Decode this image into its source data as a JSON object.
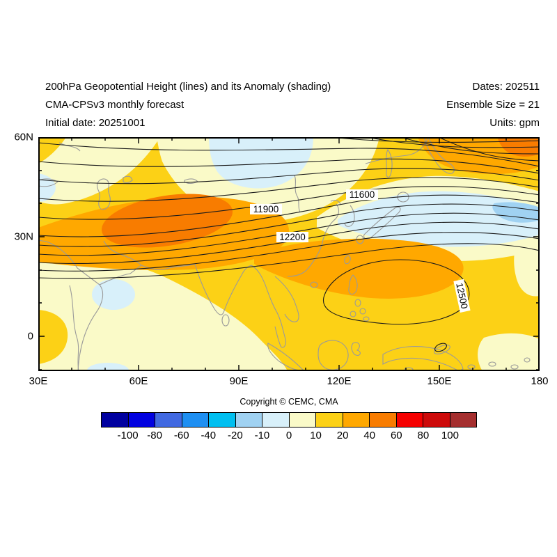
{
  "header": {
    "title": "200hPa Geopotential Height (lines) and its Anomaly (shading)",
    "model": "CMA-CPSv3 monthly forecast",
    "initial_date": "Initial date: 20251001",
    "dates": "Dates: 202511",
    "ensemble": "Ensemble Size = 21",
    "units": "Units: gpm"
  },
  "map": {
    "y_tick_labels": [
      "60N",
      "30N",
      "0"
    ],
    "x_tick_labels": [
      "30E",
      "60E",
      "90E",
      "120E",
      "150E",
      "180"
    ],
    "contour_labels": [
      "11600",
      "11900",
      "12200",
      "12500"
    ]
  },
  "footer": {
    "copyright": "Copyright © CEMC, CMA"
  },
  "colorbar": {
    "tick_labels": [
      "-100",
      "-80",
      "-60",
      "-40",
      "-20",
      "-10",
      "0",
      "10",
      "20",
      "40",
      "60",
      "80",
      "100"
    ],
    "colors": [
      "#0000A0",
      "#0202E0",
      "#4169E1",
      "#1E8FF2",
      "#00BFF0",
      "#A0D2F2",
      "#D8F0FA",
      "#FAFAC8",
      "#FCD116",
      "#FFA800",
      "#F87C00",
      "#F50000",
      "#CD0A0A",
      "#A52F2F"
    ]
  },
  "chart_data": {
    "type": "heatmap",
    "title": "200hPa Geopotential Height (lines) and its Anomaly (shading)",
    "subtitle": "CMA-CPSv3 monthly forecast, Initial date: 20251001, Dates: 202511, Ensemble Size = 21",
    "units": "gpm",
    "x_axis": {
      "ticks": [
        "30E",
        "60E",
        "90E",
        "120E",
        "150E",
        "180"
      ],
      "range_deg_east": [
        30,
        180
      ],
      "minor_tick_step_deg": 10
    },
    "y_axis": {
      "ticks": [
        "60N",
        "30N",
        "0"
      ],
      "range_deg_north": [
        -10.5,
        60
      ],
      "minor_tick_step_deg": 10
    },
    "contours": {
      "variable": "geopotential height",
      "labeled_levels": [
        11600,
        11900,
        12200,
        12500
      ],
      "pattern": "quasi-zonal lines, tightly packed jet between 30N-60N, heights increasing southward; closed 12500 high centered near 135E,18N"
    },
    "shading": {
      "variable": "geopotential height anomaly",
      "levels": [
        -100,
        -80,
        -60,
        -40,
        -20,
        -10,
        0,
        10,
        20,
        40,
        60,
        80,
        100
      ],
      "palette": [
        "#0000A0",
        "#0202E0",
        "#4169E1",
        "#1E8FF2",
        "#00BFF0",
        "#A0D2F2",
        "#D8F0FA",
        "#FAFAC8",
        "#FCD116",
        "#FFA800",
        "#F87C00",
        "#F50000",
        "#CD0A0A",
        "#A52F2F"
      ],
      "notable_features": [
        "positive anomaly maximum 40-60 gpm centered near 65E, 34N over Central Asia",
        "broad 20-40 gpm positive band along 25-35N from 40E to 145E",
        "positive anomaly 20-40 gpm over far northeast (150E-180, 50-60N)",
        "weak negative anomaly (-10 to 0) band near 95-120E, 45-60N and near Japan-dateline at 35-45N with small -20 to -10 patch near 178E, 40N",
        "small -10 to 0 patches near 55E,14N and along southern edge",
        "0-10 gpm band over Arabian Sea / Indian Ocean and diagonal bands in the north"
      ]
    },
    "legend_position": "bottom colorbar"
  }
}
